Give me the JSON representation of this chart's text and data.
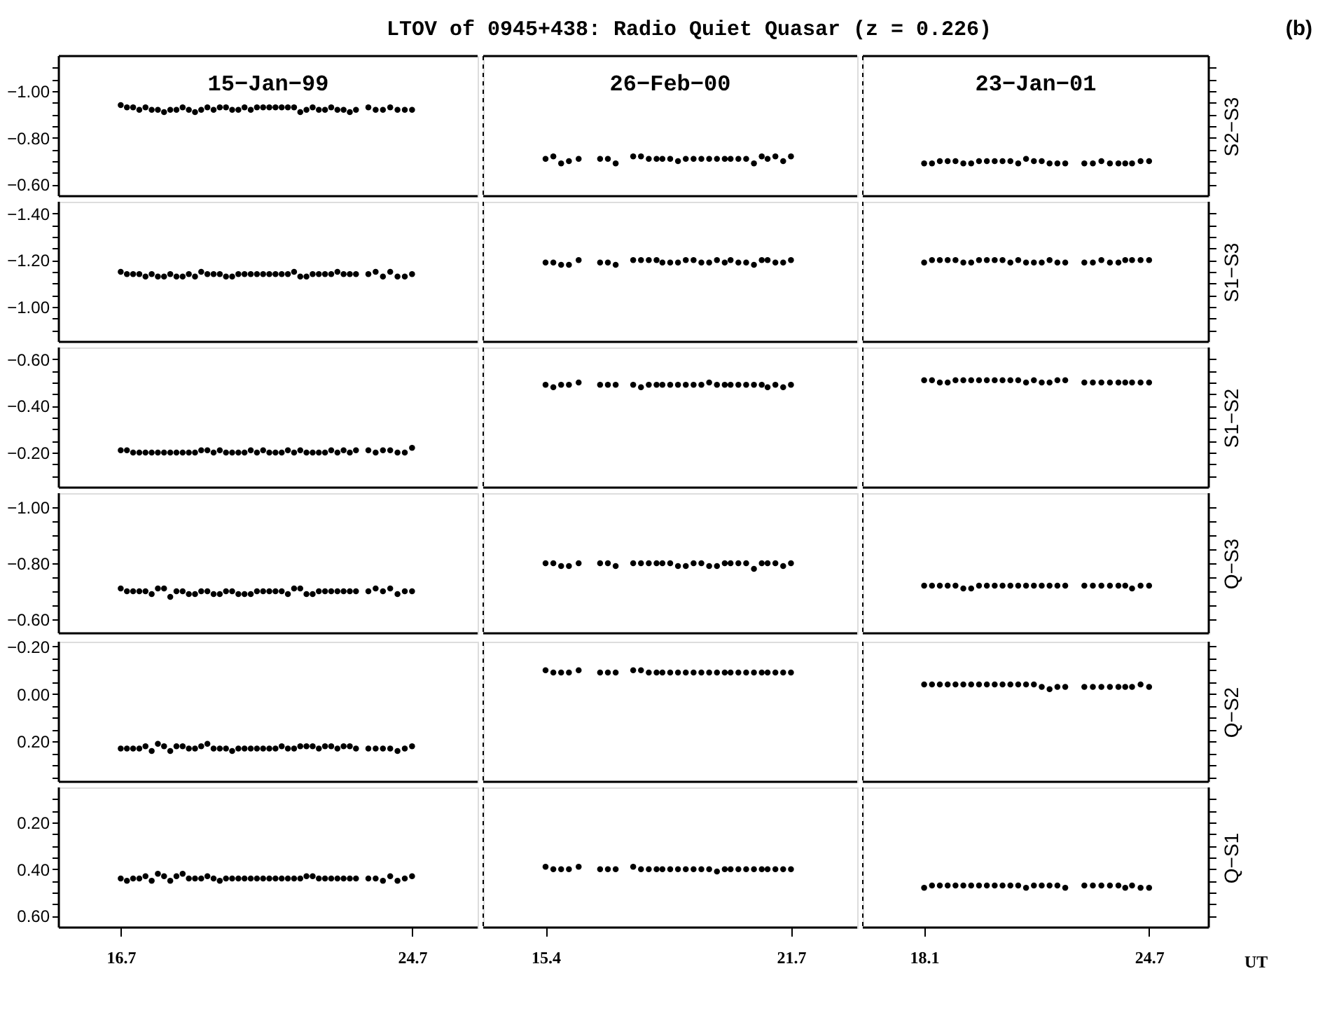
{
  "chart_data": [
    {
      "type": "other",
      "title": "LTOV of 0945+438: Radio Quiet Quasar (z = 0.226)",
      "annotations": [
        "(b)"
      ]
    },
    {
      "type": "scatter",
      "title": "15−Jan−99",
      "marker": "circle",
      "color": "#000000",
      "tick_labels": "y",
      "xlim": [
        15.0,
        26.5
      ],
      "ylim": [
        -0.55,
        -1.15
      ],
      "yticks": [
        {
          "value": -1.1,
          "label": null
        },
        {
          "value": -1.05,
          "label": null
        },
        {
          "value": -1.0,
          "label": "−1.00"
        },
        {
          "value": -0.95,
          "label": null
        },
        {
          "value": -0.9,
          "label": null
        },
        {
          "value": -0.85,
          "label": null
        },
        {
          "value": -0.8,
          "label": "−0.80"
        },
        {
          "value": -0.75,
          "label": null
        },
        {
          "value": -0.7,
          "label": null
        },
        {
          "value": -0.65,
          "label": null
        },
        {
          "value": -0.6,
          "label": "−0.60"
        }
      ],
      "x": [
        16.7,
        16.87,
        17.04,
        17.21,
        17.38,
        17.55,
        17.72,
        17.89,
        18.06,
        18.23,
        18.4,
        18.57,
        18.74,
        18.91,
        19.08,
        19.25,
        19.42,
        19.59,
        19.76,
        19.93,
        20.1,
        20.27,
        20.44,
        20.61,
        20.78,
        20.95,
        21.12,
        21.29,
        21.46,
        21.63,
        21.8,
        21.97,
        22.14,
        22.31,
        22.48,
        22.65,
        22.82,
        22.99,
        23.16,
        23.5,
        23.7,
        23.9,
        24.1,
        24.3,
        24.5,
        24.7
      ],
      "values": [
        -0.94,
        -0.93,
        -0.93,
        -0.92,
        -0.93,
        -0.92,
        -0.92,
        -0.91,
        -0.92,
        -0.92,
        -0.93,
        -0.92,
        -0.91,
        -0.92,
        -0.93,
        -0.92,
        -0.93,
        -0.93,
        -0.92,
        -0.92,
        -0.93,
        -0.92,
        -0.93,
        -0.93,
        -0.93,
        -0.93,
        -0.93,
        -0.93,
        -0.93,
        -0.91,
        -0.92,
        -0.93,
        -0.92,
        -0.92,
        -0.93,
        -0.92,
        -0.92,
        -0.91,
        -0.92,
        -0.93,
        -0.92,
        -0.92,
        -0.93,
        -0.92,
        -0.92,
        -0.92
      ]
    },
    {
      "type": "scatter",
      "title": "26−Feb−00",
      "marker": "circle",
      "color": "#000000",
      "tick_labels": false,
      "xlim": [
        13.8,
        23.4
      ],
      "ylim": [
        -0.55,
        -1.15
      ],
      "x": [
        15.4,
        15.6,
        15.8,
        16.0,
        16.25,
        16.8,
        17.0,
        17.2,
        17.65,
        17.85,
        18.05,
        18.25,
        18.4,
        18.6,
        18.8,
        19.0,
        19.2,
        19.4,
        19.6,
        19.8,
        20.0,
        20.15,
        20.35,
        20.55,
        20.75,
        20.95,
        21.1,
        21.3,
        21.5,
        21.7
      ],
      "values": [
        -0.71,
        -0.72,
        -0.69,
        -0.7,
        -0.71,
        -0.71,
        -0.71,
        -0.69,
        -0.72,
        -0.72,
        -0.71,
        -0.71,
        -0.71,
        -0.71,
        -0.7,
        -0.71,
        -0.71,
        -0.71,
        -0.71,
        -0.71,
        -0.71,
        -0.71,
        -0.71,
        -0.71,
        -0.69,
        -0.72,
        -0.71,
        -0.72,
        -0.7,
        -0.72
      ]
    },
    {
      "type": "scatter",
      "title": "23−Jan−01",
      "ylabel": "S2−S3",
      "marker": "circle",
      "color": "#000000",
      "tick_labels": false,
      "xlim": [
        16.3,
        26.45
      ],
      "ylim": [
        -0.55,
        -1.15
      ],
      "yticks": [
        {
          "value": -1.1,
          "label": null
        },
        {
          "value": -1.05,
          "label": null
        },
        {
          "value": -1.0,
          "label": null
        },
        {
          "value": -0.95,
          "label": null
        },
        {
          "value": -0.9,
          "label": null
        },
        {
          "value": -0.85,
          "label": null
        },
        {
          "value": -0.8,
          "label": null
        },
        {
          "value": -0.75,
          "label": null
        },
        {
          "value": -0.7,
          "label": null
        },
        {
          "value": -0.65,
          "label": null
        },
        {
          "value": -0.6,
          "label": null
        }
      ],
      "x": [
        18.1,
        18.33,
        18.56,
        18.79,
        19.02,
        19.25,
        19.48,
        19.71,
        19.94,
        20.17,
        20.4,
        20.63,
        20.86,
        21.09,
        21.32,
        21.55,
        21.78,
        22.01,
        22.24,
        22.8,
        23.05,
        23.3,
        23.55,
        23.8,
        24.0,
        24.2,
        24.45,
        24.7
      ],
      "values": [
        -0.69,
        -0.69,
        -0.7,
        -0.7,
        -0.7,
        -0.69,
        -0.69,
        -0.7,
        -0.7,
        -0.7,
        -0.7,
        -0.7,
        -0.69,
        -0.71,
        -0.7,
        -0.7,
        -0.69,
        -0.69,
        -0.69,
        -0.69,
        -0.69,
        -0.7,
        -0.69,
        -0.69,
        -0.69,
        -0.69,
        -0.7,
        -0.7
      ]
    },
    {
      "type": "scatter",
      "marker": "circle",
      "color": "#000000",
      "tick_labels": "y",
      "xlim": [
        15.0,
        26.5
      ],
      "ylim": [
        -0.85,
        -1.45
      ],
      "yticks": [
        {
          "value": -1.4,
          "label": "−1.40"
        },
        {
          "value": -1.35,
          "label": null
        },
        {
          "value": -1.3,
          "label": null
        },
        {
          "value": -1.25,
          "label": null
        },
        {
          "value": -1.2,
          "label": "−1.20"
        },
        {
          "value": -1.15,
          "label": null
        },
        {
          "value": -1.1,
          "label": null
        },
        {
          "value": -1.05,
          "label": null
        },
        {
          "value": -1.0,
          "label": "−1.00"
        },
        {
          "value": -0.95,
          "label": null
        },
        {
          "value": -0.9,
          "label": null
        }
      ],
      "x": [
        16.7,
        16.87,
        17.04,
        17.21,
        17.38,
        17.55,
        17.72,
        17.89,
        18.06,
        18.23,
        18.4,
        18.57,
        18.74,
        18.91,
        19.08,
        19.25,
        19.42,
        19.59,
        19.76,
        19.93,
        20.1,
        20.27,
        20.44,
        20.61,
        20.78,
        20.95,
        21.12,
        21.29,
        21.46,
        21.63,
        21.8,
        21.97,
        22.14,
        22.31,
        22.48,
        22.65,
        22.82,
        22.99,
        23.16,
        23.5,
        23.7,
        23.9,
        24.1,
        24.3,
        24.5,
        24.7
      ],
      "values": [
        -1.15,
        -1.14,
        -1.14,
        -1.14,
        -1.13,
        -1.14,
        -1.13,
        -1.13,
        -1.14,
        -1.13,
        -1.13,
        -1.14,
        -1.13,
        -1.15,
        -1.14,
        -1.14,
        -1.14,
        -1.13,
        -1.13,
        -1.14,
        -1.14,
        -1.14,
        -1.14,
        -1.14,
        -1.14,
        -1.14,
        -1.14,
        -1.14,
        -1.15,
        -1.13,
        -1.13,
        -1.14,
        -1.14,
        -1.14,
        -1.14,
        -1.15,
        -1.14,
        -1.14,
        -1.14,
        -1.14,
        -1.15,
        -1.13,
        -1.15,
        -1.13,
        -1.13,
        -1.14
      ]
    },
    {
      "type": "scatter",
      "marker": "circle",
      "color": "#000000",
      "tick_labels": false,
      "xlim": [
        13.8,
        23.4
      ],
      "ylim": [
        -0.85,
        -1.45
      ],
      "x": [
        15.4,
        15.6,
        15.8,
        16.0,
        16.25,
        16.8,
        17.0,
        17.2,
        17.65,
        17.85,
        18.05,
        18.25,
        18.4,
        18.6,
        18.8,
        19.0,
        19.2,
        19.4,
        19.6,
        19.8,
        20.0,
        20.15,
        20.35,
        20.55,
        20.75,
        20.95,
        21.1,
        21.3,
        21.5,
        21.7
      ],
      "values": [
        -1.19,
        -1.19,
        -1.18,
        -1.18,
        -1.2,
        -1.19,
        -1.19,
        -1.18,
        -1.2,
        -1.2,
        -1.2,
        -1.2,
        -1.19,
        -1.19,
        -1.19,
        -1.2,
        -1.2,
        -1.19,
        -1.19,
        -1.2,
        -1.19,
        -1.2,
        -1.19,
        -1.19,
        -1.18,
        -1.2,
        -1.2,
        -1.19,
        -1.19,
        -1.2
      ]
    },
    {
      "type": "scatter",
      "ylabel": "S1−S3",
      "marker": "circle",
      "color": "#000000",
      "tick_labels": false,
      "xlim": [
        16.3,
        26.45
      ],
      "ylim": [
        -0.85,
        -1.45
      ],
      "yticks": [
        {
          "value": -1.4,
          "label": null
        },
        {
          "value": -1.35,
          "label": null
        },
        {
          "value": -1.3,
          "label": null
        },
        {
          "value": -1.25,
          "label": null
        },
        {
          "value": -1.2,
          "label": null
        },
        {
          "value": -1.15,
          "label": null
        },
        {
          "value": -1.1,
          "label": null
        },
        {
          "value": -1.05,
          "label": null
        },
        {
          "value": -1.0,
          "label": null
        },
        {
          "value": -0.95,
          "label": null
        },
        {
          "value": -0.9,
          "label": null
        }
      ],
      "x": [
        18.1,
        18.33,
        18.56,
        18.79,
        19.02,
        19.25,
        19.48,
        19.71,
        19.94,
        20.17,
        20.4,
        20.63,
        20.86,
        21.09,
        21.32,
        21.55,
        21.78,
        22.01,
        22.24,
        22.8,
        23.05,
        23.3,
        23.55,
        23.8,
        24.0,
        24.2,
        24.45,
        24.7
      ],
      "values": [
        -1.19,
        -1.2,
        -1.2,
        -1.2,
        -1.2,
        -1.19,
        -1.19,
        -1.2,
        -1.2,
        -1.2,
        -1.2,
        -1.19,
        -1.2,
        -1.19,
        -1.19,
        -1.19,
        -1.2,
        -1.19,
        -1.19,
        -1.19,
        -1.19,
        -1.2,
        -1.19,
        -1.19,
        -1.2,
        -1.2,
        -1.2,
        -1.2
      ]
    },
    {
      "type": "scatter",
      "marker": "circle",
      "color": "#000000",
      "tick_labels": "y",
      "xlim": [
        15.0,
        26.5
      ],
      "ylim": [
        -0.05,
        -0.65
      ],
      "yticks": [
        {
          "value": -0.6,
          "label": "−0.60"
        },
        {
          "value": -0.55,
          "label": null
        },
        {
          "value": -0.5,
          "label": null
        },
        {
          "value": -0.45,
          "label": null
        },
        {
          "value": -0.4,
          "label": "−0.40"
        },
        {
          "value": -0.35,
          "label": null
        },
        {
          "value": -0.3,
          "label": null
        },
        {
          "value": -0.25,
          "label": null
        },
        {
          "value": -0.2,
          "label": "−0.20"
        },
        {
          "value": -0.15,
          "label": null
        },
        {
          "value": -0.1,
          "label": null
        }
      ],
      "x": [
        16.7,
        16.87,
        17.04,
        17.21,
        17.38,
        17.55,
        17.72,
        17.89,
        18.06,
        18.23,
        18.4,
        18.57,
        18.74,
        18.91,
        19.08,
        19.25,
        19.42,
        19.59,
        19.76,
        19.93,
        20.1,
        20.27,
        20.44,
        20.61,
        20.78,
        20.95,
        21.12,
        21.29,
        21.46,
        21.63,
        21.8,
        21.97,
        22.14,
        22.31,
        22.48,
        22.65,
        22.82,
        22.99,
        23.16,
        23.5,
        23.7,
        23.9,
        24.1,
        24.3,
        24.5,
        24.7
      ],
      "values": [
        -0.21,
        -0.21,
        -0.2,
        -0.2,
        -0.2,
        -0.2,
        -0.2,
        -0.2,
        -0.2,
        -0.2,
        -0.2,
        -0.2,
        -0.2,
        -0.21,
        -0.21,
        -0.2,
        -0.21,
        -0.2,
        -0.2,
        -0.2,
        -0.2,
        -0.21,
        -0.2,
        -0.21,
        -0.2,
        -0.2,
        -0.2,
        -0.21,
        -0.2,
        -0.21,
        -0.2,
        -0.2,
        -0.2,
        -0.2,
        -0.21,
        -0.2,
        -0.21,
        -0.2,
        -0.21,
        -0.21,
        -0.2,
        -0.21,
        -0.21,
        -0.2,
        -0.2,
        -0.22
      ]
    },
    {
      "type": "scatter",
      "marker": "circle",
      "color": "#000000",
      "tick_labels": false,
      "xlim": [
        13.8,
        23.4
      ],
      "ylim": [
        -0.05,
        -0.65
      ],
      "x": [
        15.4,
        15.6,
        15.8,
        16.0,
        16.25,
        16.8,
        17.0,
        17.2,
        17.65,
        17.85,
        18.05,
        18.25,
        18.4,
        18.6,
        18.8,
        19.0,
        19.2,
        19.4,
        19.6,
        19.8,
        20.0,
        20.15,
        20.35,
        20.55,
        20.75,
        20.95,
        21.1,
        21.3,
        21.5,
        21.7
      ],
      "values": [
        -0.49,
        -0.48,
        -0.49,
        -0.49,
        -0.5,
        -0.49,
        -0.49,
        -0.49,
        -0.49,
        -0.48,
        -0.49,
        -0.49,
        -0.49,
        -0.49,
        -0.49,
        -0.49,
        -0.49,
        -0.49,
        -0.5,
        -0.49,
        -0.49,
        -0.49,
        -0.49,
        -0.49,
        -0.49,
        -0.49,
        -0.48,
        -0.49,
        -0.48,
        -0.49
      ]
    },
    {
      "type": "scatter",
      "ylabel": "S1−S2",
      "marker": "circle",
      "color": "#000000",
      "tick_labels": false,
      "xlim": [
        16.3,
        26.45
      ],
      "ylim": [
        -0.05,
        -0.65
      ],
      "yticks": [
        {
          "value": -0.6,
          "label": null
        },
        {
          "value": -0.55,
          "label": null
        },
        {
          "value": -0.5,
          "label": null
        },
        {
          "value": -0.45,
          "label": null
        },
        {
          "value": -0.4,
          "label": null
        },
        {
          "value": -0.35,
          "label": null
        },
        {
          "value": -0.3,
          "label": null
        },
        {
          "value": -0.25,
          "label": null
        },
        {
          "value": -0.2,
          "label": null
        },
        {
          "value": -0.15,
          "label": null
        },
        {
          "value": -0.1,
          "label": null
        }
      ],
      "x": [
        18.1,
        18.33,
        18.56,
        18.79,
        19.02,
        19.25,
        19.48,
        19.71,
        19.94,
        20.17,
        20.4,
        20.63,
        20.86,
        21.09,
        21.32,
        21.55,
        21.78,
        22.01,
        22.24,
        22.8,
        23.05,
        23.3,
        23.55,
        23.8,
        24.0,
        24.2,
        24.45,
        24.7
      ],
      "values": [
        -0.51,
        -0.51,
        -0.5,
        -0.5,
        -0.51,
        -0.51,
        -0.51,
        -0.51,
        -0.51,
        -0.51,
        -0.51,
        -0.51,
        -0.51,
        -0.5,
        -0.51,
        -0.5,
        -0.5,
        -0.51,
        -0.51,
        -0.5,
        -0.5,
        -0.5,
        -0.5,
        -0.5,
        -0.5,
        -0.5,
        -0.5,
        -0.5
      ]
    },
    {
      "type": "scatter",
      "marker": "circle",
      "color": "#000000",
      "tick_labels": "y",
      "xlim": [
        15.0,
        26.5
      ],
      "ylim": [
        -0.55,
        -1.05
      ],
      "yticks": [
        {
          "value": -1.0,
          "label": "−1.00"
        },
        {
          "value": -0.95,
          "label": null
        },
        {
          "value": -0.9,
          "label": null
        },
        {
          "value": -0.85,
          "label": null
        },
        {
          "value": -0.8,
          "label": "−0.80"
        },
        {
          "value": -0.75,
          "label": null
        },
        {
          "value": -0.7,
          "label": null
        },
        {
          "value": -0.65,
          "label": null
        },
        {
          "value": -0.6,
          "label": "−0.60"
        }
      ],
      "x": [
        16.7,
        16.87,
        17.04,
        17.21,
        17.38,
        17.55,
        17.72,
        17.89,
        18.06,
        18.23,
        18.4,
        18.57,
        18.74,
        18.91,
        19.08,
        19.25,
        19.42,
        19.59,
        19.76,
        19.93,
        20.1,
        20.27,
        20.44,
        20.61,
        20.78,
        20.95,
        21.12,
        21.29,
        21.46,
        21.63,
        21.8,
        21.97,
        22.14,
        22.31,
        22.48,
        22.65,
        22.82,
        22.99,
        23.16,
        23.5,
        23.7,
        23.9,
        24.1,
        24.3,
        24.5,
        24.7
      ],
      "values": [
        -0.71,
        -0.7,
        -0.7,
        -0.7,
        -0.7,
        -0.69,
        -0.71,
        -0.71,
        -0.68,
        -0.7,
        -0.7,
        -0.69,
        -0.69,
        -0.7,
        -0.7,
        -0.69,
        -0.69,
        -0.7,
        -0.7,
        -0.69,
        -0.69,
        -0.69,
        -0.7,
        -0.7,
        -0.7,
        -0.7,
        -0.7,
        -0.69,
        -0.71,
        -0.71,
        -0.69,
        -0.69,
        -0.7,
        -0.7,
        -0.7,
        -0.7,
        -0.7,
        -0.7,
        -0.7,
        -0.7,
        -0.71,
        -0.7,
        -0.71,
        -0.69,
        -0.7,
        -0.7
      ]
    },
    {
      "type": "scatter",
      "marker": "circle",
      "color": "#000000",
      "tick_labels": false,
      "xlim": [
        13.8,
        23.4
      ],
      "ylim": [
        -0.55,
        -1.05
      ],
      "x": [
        15.4,
        15.6,
        15.8,
        16.0,
        16.25,
        16.8,
        17.0,
        17.2,
        17.65,
        17.85,
        18.05,
        18.25,
        18.4,
        18.6,
        18.8,
        19.0,
        19.2,
        19.4,
        19.6,
        19.8,
        20.0,
        20.15,
        20.35,
        20.55,
        20.75,
        20.95,
        21.1,
        21.3,
        21.5,
        21.7
      ],
      "values": [
        -0.8,
        -0.8,
        -0.79,
        -0.79,
        -0.8,
        -0.8,
        -0.8,
        -0.79,
        -0.8,
        -0.8,
        -0.8,
        -0.8,
        -0.8,
        -0.8,
        -0.79,
        -0.79,
        -0.8,
        -0.8,
        -0.79,
        -0.79,
        -0.8,
        -0.8,
        -0.8,
        -0.8,
        -0.78,
        -0.8,
        -0.8,
        -0.8,
        -0.79,
        -0.8
      ]
    },
    {
      "type": "scatter",
      "ylabel": "Q−S3",
      "marker": "circle",
      "color": "#000000",
      "tick_labels": false,
      "xlim": [
        16.3,
        26.45
      ],
      "ylim": [
        -0.55,
        -1.05
      ],
      "yticks": [
        {
          "value": -1.0,
          "label": null
        },
        {
          "value": -0.95,
          "label": null
        },
        {
          "value": -0.9,
          "label": null
        },
        {
          "value": -0.85,
          "label": null
        },
        {
          "value": -0.8,
          "label": null
        },
        {
          "value": -0.75,
          "label": null
        },
        {
          "value": -0.7,
          "label": null
        },
        {
          "value": -0.65,
          "label": null
        },
        {
          "value": -0.6,
          "label": null
        }
      ],
      "x": [
        18.1,
        18.33,
        18.56,
        18.79,
        19.02,
        19.25,
        19.48,
        19.71,
        19.94,
        20.17,
        20.4,
        20.63,
        20.86,
        21.09,
        21.32,
        21.55,
        21.78,
        22.01,
        22.24,
        22.8,
        23.05,
        23.3,
        23.55,
        23.8,
        24.0,
        24.2,
        24.45,
        24.7
      ],
      "values": [
        -0.72,
        -0.72,
        -0.72,
        -0.72,
        -0.72,
        -0.71,
        -0.71,
        -0.72,
        -0.72,
        -0.72,
        -0.72,
        -0.72,
        -0.72,
        -0.72,
        -0.72,
        -0.72,
        -0.72,
        -0.72,
        -0.72,
        -0.72,
        -0.72,
        -0.72,
        -0.72,
        -0.72,
        -0.72,
        -0.71,
        -0.72,
        -0.72
      ]
    },
    {
      "type": "scatter",
      "marker": "circle",
      "color": "#000000",
      "tick_labels": "y",
      "xlim": [
        15.0,
        26.5
      ],
      "ylim": [
        0.37,
        -0.22
      ],
      "yticks": [
        {
          "value": -0.2,
          "label": "−0.20"
        },
        {
          "value": -0.15,
          "label": null
        },
        {
          "value": -0.1,
          "label": null
        },
        {
          "value": -0.05,
          "label": null
        },
        {
          "value": 0.0,
          "label": "0.00"
        },
        {
          "value": 0.05,
          "label": null
        },
        {
          "value": 0.1,
          "label": null
        },
        {
          "value": 0.15,
          "label": null
        },
        {
          "value": 0.2,
          "label": "0.20"
        },
        {
          "value": 0.25,
          "label": null
        },
        {
          "value": 0.3,
          "label": null
        },
        {
          "value": 0.35,
          "label": null
        }
      ],
      "x": [
        16.7,
        16.87,
        17.04,
        17.21,
        17.38,
        17.55,
        17.72,
        17.89,
        18.06,
        18.23,
        18.4,
        18.57,
        18.74,
        18.91,
        19.08,
        19.25,
        19.42,
        19.59,
        19.76,
        19.93,
        20.1,
        20.27,
        20.44,
        20.61,
        20.78,
        20.95,
        21.12,
        21.29,
        21.46,
        21.63,
        21.8,
        21.97,
        22.14,
        22.31,
        22.48,
        22.65,
        22.82,
        22.99,
        23.16,
        23.5,
        23.7,
        23.9,
        24.1,
        24.3,
        24.5,
        24.7
      ],
      "values": [
        0.23,
        0.23,
        0.23,
        0.23,
        0.22,
        0.24,
        0.21,
        0.22,
        0.24,
        0.22,
        0.22,
        0.23,
        0.23,
        0.22,
        0.21,
        0.23,
        0.23,
        0.23,
        0.24,
        0.23,
        0.23,
        0.23,
        0.23,
        0.23,
        0.23,
        0.23,
        0.22,
        0.23,
        0.23,
        0.22,
        0.22,
        0.22,
        0.23,
        0.22,
        0.22,
        0.23,
        0.22,
        0.22,
        0.23,
        0.23,
        0.23,
        0.23,
        0.23,
        0.24,
        0.23,
        0.22
      ]
    },
    {
      "type": "scatter",
      "marker": "circle",
      "color": "#000000",
      "tick_labels": false,
      "xlim": [
        13.8,
        23.4
      ],
      "ylim": [
        0.37,
        -0.22
      ],
      "x": [
        15.4,
        15.6,
        15.8,
        16.0,
        16.25,
        16.8,
        17.0,
        17.2,
        17.65,
        17.85,
        18.05,
        18.25,
        18.4,
        18.6,
        18.8,
        19.0,
        19.2,
        19.4,
        19.6,
        19.8,
        20.0,
        20.15,
        20.35,
        20.55,
        20.75,
        20.95,
        21.1,
        21.3,
        21.5,
        21.7
      ],
      "values": [
        -0.1,
        -0.09,
        -0.09,
        -0.09,
        -0.1,
        -0.09,
        -0.09,
        -0.09,
        -0.1,
        -0.1,
        -0.09,
        -0.09,
        -0.09,
        -0.09,
        -0.09,
        -0.09,
        -0.09,
        -0.09,
        -0.09,
        -0.09,
        -0.09,
        -0.09,
        -0.09,
        -0.09,
        -0.09,
        -0.09,
        -0.09,
        -0.09,
        -0.09,
        -0.09
      ]
    },
    {
      "type": "scatter",
      "ylabel": "Q−S2",
      "marker": "circle",
      "color": "#000000",
      "tick_labels": false,
      "xlim": [
        16.3,
        26.45
      ],
      "ylim": [
        0.37,
        -0.22
      ],
      "yticks": [
        {
          "value": -0.2,
          "label": null
        },
        {
          "value": -0.15,
          "label": null
        },
        {
          "value": -0.1,
          "label": null
        },
        {
          "value": -0.05,
          "label": null
        },
        {
          "value": 0.0,
          "label": null
        },
        {
          "value": 0.05,
          "label": null
        },
        {
          "value": 0.1,
          "label": null
        },
        {
          "value": 0.15,
          "label": null
        },
        {
          "value": 0.2,
          "label": null
        },
        {
          "value": 0.25,
          "label": null
        },
        {
          "value": 0.3,
          "label": null
        },
        {
          "value": 0.35,
          "label": null
        }
      ],
      "x": [
        18.1,
        18.33,
        18.56,
        18.79,
        19.02,
        19.25,
        19.48,
        19.71,
        19.94,
        20.17,
        20.4,
        20.63,
        20.86,
        21.09,
        21.32,
        21.55,
        21.78,
        22.01,
        22.24,
        22.8,
        23.05,
        23.3,
        23.55,
        23.8,
        24.0,
        24.2,
        24.45,
        24.7
      ],
      "values": [
        -0.04,
        -0.04,
        -0.04,
        -0.04,
        -0.04,
        -0.04,
        -0.04,
        -0.04,
        -0.04,
        -0.04,
        -0.04,
        -0.04,
        -0.04,
        -0.04,
        -0.04,
        -0.03,
        -0.02,
        -0.03,
        -0.03,
        -0.03,
        -0.03,
        -0.03,
        -0.03,
        -0.03,
        -0.03,
        -0.03,
        -0.04,
        -0.03
      ]
    },
    {
      "type": "scatter",
      "marker": "circle",
      "color": "#000000",
      "xlim": [
        15.0,
        26.5
      ],
      "ylim": [
        0.65,
        0.05
      ],
      "xticks": [
        16.7,
        24.7
      ],
      "yticks": [
        {
          "value": 0.1,
          "label": null
        },
        {
          "value": 0.15,
          "label": null
        },
        {
          "value": 0.2,
          "label": "0.20"
        },
        {
          "value": 0.25,
          "label": null
        },
        {
          "value": 0.3,
          "label": null
        },
        {
          "value": 0.35,
          "label": null
        },
        {
          "value": 0.4,
          "label": "0.40"
        },
        {
          "value": 0.45,
          "label": null
        },
        {
          "value": 0.5,
          "label": null
        },
        {
          "value": 0.55,
          "label": null
        },
        {
          "value": 0.6,
          "label": "0.60"
        }
      ],
      "x": [
        16.7,
        16.87,
        17.04,
        17.21,
        17.38,
        17.55,
        17.72,
        17.89,
        18.06,
        18.23,
        18.4,
        18.57,
        18.74,
        18.91,
        19.08,
        19.25,
        19.42,
        19.59,
        19.76,
        19.93,
        20.1,
        20.27,
        20.44,
        20.61,
        20.78,
        20.95,
        21.12,
        21.29,
        21.46,
        21.63,
        21.8,
        21.97,
        22.14,
        22.31,
        22.48,
        22.65,
        22.82,
        22.99,
        23.16,
        23.5,
        23.7,
        23.9,
        24.1,
        24.3,
        24.5,
        24.7
      ],
      "values": [
        0.44,
        0.45,
        0.44,
        0.44,
        0.43,
        0.45,
        0.42,
        0.43,
        0.45,
        0.43,
        0.42,
        0.44,
        0.44,
        0.44,
        0.43,
        0.44,
        0.45,
        0.44,
        0.44,
        0.44,
        0.44,
        0.44,
        0.44,
        0.44,
        0.44,
        0.44,
        0.44,
        0.44,
        0.44,
        0.44,
        0.43,
        0.43,
        0.44,
        0.44,
        0.44,
        0.44,
        0.44,
        0.44,
        0.44,
        0.44,
        0.44,
        0.45,
        0.43,
        0.45,
        0.44,
        0.43
      ]
    },
    {
      "type": "scatter",
      "marker": "circle",
      "color": "#000000",
      "tick_labels": "x",
      "xlim": [
        13.8,
        23.4
      ],
      "ylim": [
        0.65,
        0.05
      ],
      "xticks": [
        15.4,
        21.7
      ],
      "x": [
        15.4,
        15.6,
        15.8,
        16.0,
        16.25,
        16.8,
        17.0,
        17.2,
        17.65,
        17.85,
        18.05,
        18.25,
        18.4,
        18.6,
        18.8,
        19.0,
        19.2,
        19.4,
        19.6,
        19.8,
        20.0,
        20.15,
        20.35,
        20.55,
        20.75,
        20.95,
        21.1,
        21.3,
        21.5,
        21.7
      ],
      "values": [
        0.39,
        0.4,
        0.4,
        0.4,
        0.39,
        0.4,
        0.4,
        0.4,
        0.39,
        0.4,
        0.4,
        0.4,
        0.4,
        0.4,
        0.4,
        0.4,
        0.4,
        0.4,
        0.4,
        0.41,
        0.4,
        0.4,
        0.4,
        0.4,
        0.4,
        0.4,
        0.4,
        0.4,
        0.4,
        0.4
      ]
    },
    {
      "type": "scatter",
      "ylabel": "Q−S1",
      "xlabel": "UT",
      "marker": "circle",
      "color": "#000000",
      "tick_labels": "x",
      "xlim": [
        16.3,
        26.45
      ],
      "ylim": [
        0.65,
        0.05
      ],
      "xticks": [
        18.1,
        24.7
      ],
      "yticks": [
        {
          "value": 0.1,
          "label": null
        },
        {
          "value": 0.15,
          "label": null
        },
        {
          "value": 0.2,
          "label": null
        },
        {
          "value": 0.25,
          "label": null
        },
        {
          "value": 0.3,
          "label": null
        },
        {
          "value": 0.35,
          "label": null
        },
        {
          "value": 0.4,
          "label": null
        },
        {
          "value": 0.45,
          "label": null
        },
        {
          "value": 0.5,
          "label": null
        },
        {
          "value": 0.55,
          "label": null
        },
        {
          "value": 0.6,
          "label": null
        }
      ],
      "x": [
        18.1,
        18.33,
        18.56,
        18.79,
        19.02,
        19.25,
        19.48,
        19.71,
        19.94,
        20.17,
        20.4,
        20.63,
        20.86,
        21.09,
        21.32,
        21.55,
        21.78,
        22.01,
        22.24,
        22.8,
        23.05,
        23.3,
        23.55,
        23.8,
        24.0,
        24.2,
        24.45,
        24.7
      ],
      "values": [
        0.48,
        0.47,
        0.47,
        0.47,
        0.47,
        0.47,
        0.47,
        0.47,
        0.47,
        0.47,
        0.47,
        0.47,
        0.47,
        0.48,
        0.47,
        0.47,
        0.47,
        0.47,
        0.48,
        0.47,
        0.47,
        0.47,
        0.47,
        0.47,
        0.48,
        0.47,
        0.48,
        0.48
      ]
    }
  ]
}
